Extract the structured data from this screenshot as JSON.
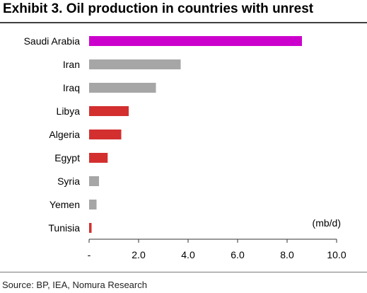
{
  "title": "Exhibit 3. Oil production in countries with unrest",
  "source": "Source: BP, IEA, Nomura Research",
  "colors": {
    "highlight": "#cc00cc",
    "unrest": "#d32f2f",
    "other": "#a6a6a6"
  },
  "chart_data": {
    "type": "bar",
    "orientation": "horizontal",
    "categories": [
      "Saudi Arabia",
      "Iran",
      "Iraq",
      "Libya",
      "Algeria",
      "Egypt",
      "Syria",
      "Yemen",
      "Tunisia"
    ],
    "values": [
      8.6,
      3.7,
      2.7,
      1.6,
      1.3,
      0.75,
      0.4,
      0.3,
      0.1
    ],
    "bar_colors": [
      "highlight",
      "other",
      "other",
      "unrest",
      "unrest",
      "unrest",
      "other",
      "other",
      "unrest"
    ],
    "xlim": [
      0,
      10
    ],
    "xticks": [
      "-",
      "2.0",
      "4.0",
      "6.0",
      "8.0",
      "10.0"
    ],
    "unit_annotation": "(mb/d)",
    "grid": false,
    "legend": "none"
  }
}
